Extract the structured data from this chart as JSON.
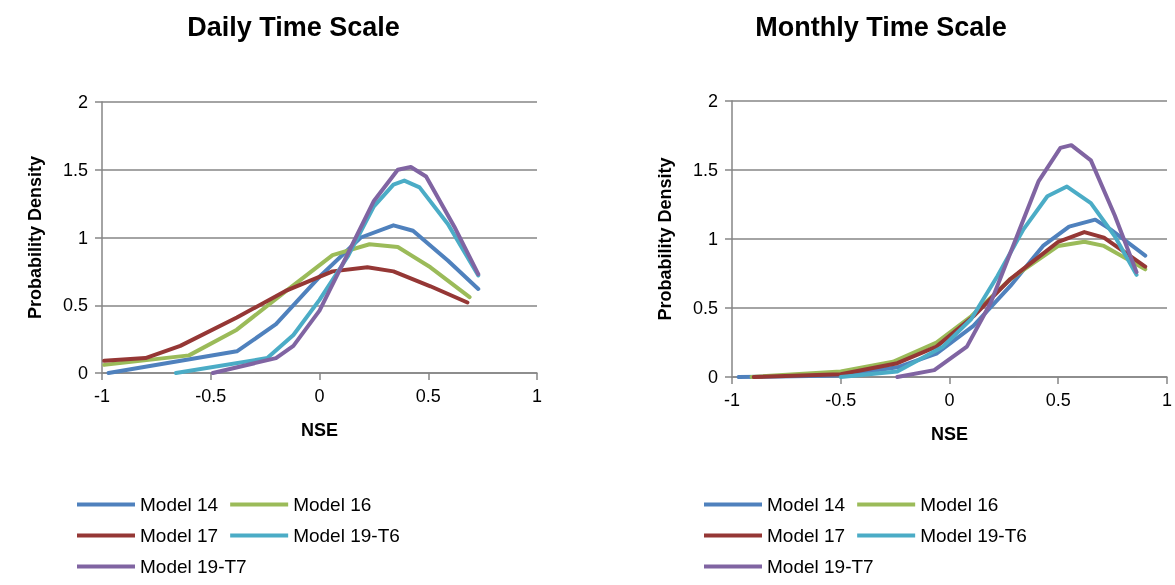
{
  "chart_data": [
    {
      "type": "line",
      "title": "Daily Time Scale",
      "xlabel": "NSE",
      "ylabel": "Probability Density",
      "xlim": [
        -1,
        1
      ],
      "xticks": [
        -1,
        -0.5,
        0,
        0.5,
        1
      ],
      "ylim": [
        0,
        2
      ],
      "yticks": [
        0,
        0.5,
        1,
        1.5,
        2
      ],
      "grid": "y",
      "legend": "bottom",
      "marker": "none",
      "line_style": "solid",
      "series": [
        {
          "name": "Model 14",
          "color": "#4f81bd",
          "x": [
            -0.97,
            -0.38,
            -0.2,
            0.0,
            0.19,
            0.34,
            0.43,
            0.59,
            0.73
          ],
          "values": [
            0,
            0.16,
            0.36,
            0.71,
            1.0,
            1.09,
            1.05,
            0.83,
            0.62
          ]
        },
        {
          "name": "Model 16",
          "color": "#9bbb59",
          "x": [
            -0.99,
            -0.6,
            -0.38,
            -0.15,
            0.06,
            0.23,
            0.36,
            0.51,
            0.69
          ],
          "values": [
            0.06,
            0.13,
            0.32,
            0.61,
            0.87,
            0.95,
            0.93,
            0.78,
            0.56
          ]
        },
        {
          "name": "Model 17",
          "color": "#953735",
          "x": [
            -0.99,
            -0.8,
            -0.64,
            -0.38,
            -0.15,
            0.06,
            0.22,
            0.34,
            0.51,
            0.68
          ],
          "values": [
            0.09,
            0.11,
            0.2,
            0.41,
            0.61,
            0.75,
            0.78,
            0.75,
            0.64,
            0.52
          ]
        },
        {
          "name": "Model 19-T6",
          "color": "#4bacc6",
          "x": [
            -0.66,
            -0.24,
            -0.12,
            0.0,
            0.13,
            0.25,
            0.34,
            0.39,
            0.46,
            0.59,
            0.73
          ],
          "values": [
            0,
            0.11,
            0.28,
            0.54,
            0.86,
            1.23,
            1.39,
            1.42,
            1.37,
            1.1,
            0.72
          ]
        },
        {
          "name": "Model 19-T7",
          "color": "#8064a2",
          "x": [
            -0.49,
            -0.2,
            -0.12,
            0.0,
            0.13,
            0.25,
            0.36,
            0.42,
            0.49,
            0.62,
            0.73
          ],
          "values": [
            0,
            0.11,
            0.2,
            0.46,
            0.88,
            1.27,
            1.5,
            1.52,
            1.45,
            1.08,
            0.73
          ]
        }
      ]
    },
    {
      "type": "line",
      "title": "Monthly Time Scale",
      "xlabel": "NSE",
      "ylabel": "Probability Density",
      "xlim": [
        -1,
        1
      ],
      "xticks": [
        -1,
        -0.5,
        0,
        0.5,
        1
      ],
      "ylim": [
        0,
        2
      ],
      "yticks": [
        0,
        0.5,
        1,
        1.5,
        2
      ],
      "grid": "y",
      "legend": "bottom",
      "marker": "none",
      "line_style": "solid",
      "series": [
        {
          "name": "Model 14",
          "color": "#4f81bd",
          "x": [
            -0.97,
            -0.5,
            -0.24,
            -0.06,
            0.11,
            0.28,
            0.43,
            0.55,
            0.67,
            0.74,
            0.9
          ],
          "values": [
            0,
            0.01,
            0.07,
            0.17,
            0.37,
            0.66,
            0.95,
            1.09,
            1.14,
            1.07,
            0.88
          ]
        },
        {
          "name": "Model 16",
          "color": "#9bbb59",
          "x": [
            -0.91,
            -0.5,
            -0.26,
            -0.06,
            0.1,
            0.28,
            0.5,
            0.62,
            0.71,
            0.9
          ],
          "values": [
            0,
            0.04,
            0.11,
            0.25,
            0.44,
            0.71,
            0.95,
            0.98,
            0.95,
            0.78
          ]
        },
        {
          "name": "Model 17",
          "color": "#953735",
          "x": [
            -0.9,
            -0.5,
            -0.24,
            -0.06,
            0.11,
            0.28,
            0.5,
            0.62,
            0.71,
            0.9
          ],
          "values": [
            0,
            0.02,
            0.1,
            0.22,
            0.44,
            0.71,
            0.98,
            1.05,
            1.01,
            0.8
          ]
        },
        {
          "name": "Model 19-T6",
          "color": "#4bacc6",
          "x": [
            -0.5,
            -0.24,
            -0.03,
            0.1,
            0.22,
            0.34,
            0.45,
            0.54,
            0.65,
            0.76,
            0.86
          ],
          "values": [
            0,
            0.04,
            0.22,
            0.42,
            0.73,
            1.07,
            1.31,
            1.38,
            1.26,
            1.02,
            0.74
          ]
        },
        {
          "name": "Model 19-T7",
          "color": "#8064a2",
          "x": [
            -0.24,
            -0.07,
            0.08,
            0.19,
            0.31,
            0.41,
            0.51,
            0.56,
            0.65,
            0.76,
            0.86
          ],
          "values": [
            0,
            0.05,
            0.22,
            0.54,
            1.02,
            1.42,
            1.66,
            1.68,
            1.57,
            1.17,
            0.76
          ]
        }
      ]
    }
  ]
}
